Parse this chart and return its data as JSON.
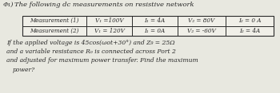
{
  "bg_color": "#e8e8e0",
  "text_color": "#2a2a2a",
  "title_q": "Φ₁)",
  "title_rest": "The following dc measurements on resistive network",
  "row1_label": "Measurement (1)",
  "row2_label": "Measurement (2)",
  "row1_cols": [
    "V₁ =100V",
    "I₁ = 4A",
    "V₂ = 80V",
    "I₂ = 0 A"
  ],
  "row2_cols": [
    "V₁ = 120V",
    "I₁ = 0A",
    "V₂ = -60V",
    "I₂ = 4A"
  ],
  "body_lines": [
    "If the applied voltage is 45cos(ωot+30°) and Z₉ = 25Ω",
    "and a variable resistance Rₒ is connected across Port 2",
    "and adjusted for maximum power transfer. Find the maximum",
    "power?"
  ],
  "fs_title": 6.0,
  "fs_table": 5.2,
  "fs_body": 5.5
}
